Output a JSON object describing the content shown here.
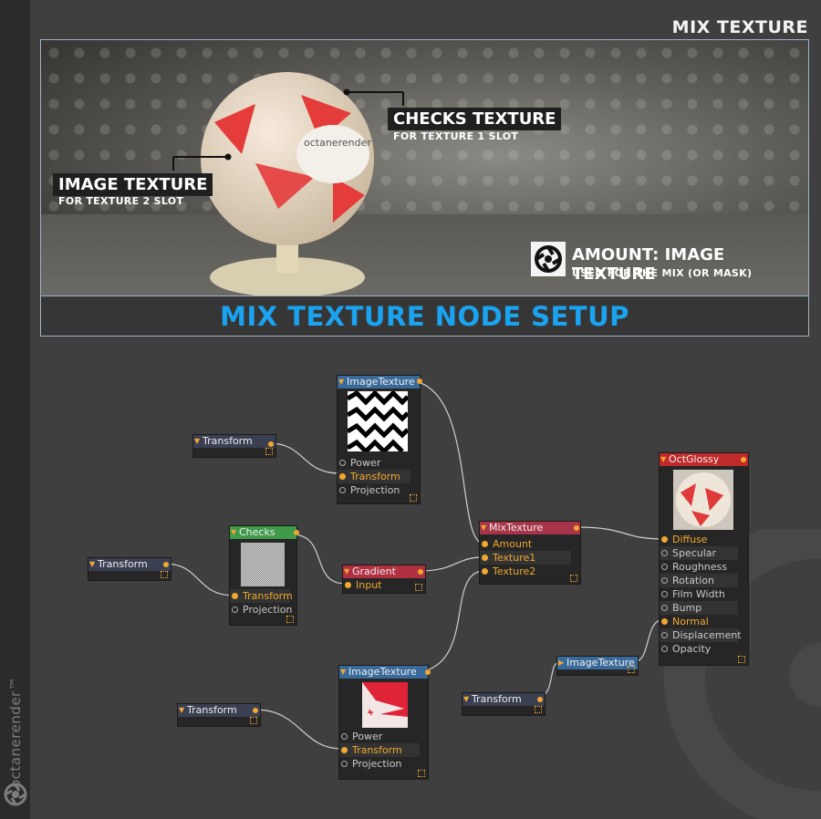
{
  "page_title": "MIX TEXTURE",
  "brand": "octanerender™",
  "hero": {
    "checks_label": "CHECKS TEXTURE",
    "checks_sub": "FOR TEXTURE 1 SLOT",
    "image_label": "IMAGE TEXTURE",
    "image_sub": "FOR TEXTURE 2 SLOT",
    "amount_label": "AMOUNT: IMAGE TEXTURE",
    "amount_sub": "USED FOR THE MIX (OR MASK)",
    "ball_text": "octanerender"
  },
  "banner": "MIX TEXTURE NODE SETUP",
  "colors": {
    "accent": "#1aa3f0",
    "port_active": "#f0a830",
    "header_image": "#3a6a9a",
    "header_checks": "#3f9a4a",
    "header_gradient": "#b03040",
    "header_mix": "#a8344a",
    "header_glossy": "#c02a2a",
    "header_transform": "#3a3f52"
  },
  "nodes": {
    "image_top": {
      "title": "ImageTexture",
      "ports": [
        "Power",
        "Transform",
        "Projection"
      ]
    },
    "transform_a": {
      "title": "Transform"
    },
    "checks": {
      "title": "Checks",
      "ports": [
        "Transform",
        "Projection"
      ]
    },
    "transform_b": {
      "title": "Transform"
    },
    "gradient": {
      "title": "Gradient",
      "ports": [
        "Input"
      ]
    },
    "mix": {
      "title": "MixTexture",
      "ports": [
        "Amount",
        "Texture1",
        "Texture2"
      ]
    },
    "glossy": {
      "title": "OctGlossy",
      "ports": [
        "Diffuse",
        "Specular",
        "Roughness",
        "Rotation",
        "Film Width",
        "Bump",
        "Normal",
        "Displacement",
        "Opacity"
      ]
    },
    "image_bottom": {
      "title": "ImageTexture",
      "ports": [
        "Power",
        "Transform",
        "Projection"
      ]
    },
    "transform_c": {
      "title": "Transform"
    },
    "image_small": {
      "title": "ImageTexture"
    },
    "transform_d": {
      "title": "Transform"
    }
  }
}
